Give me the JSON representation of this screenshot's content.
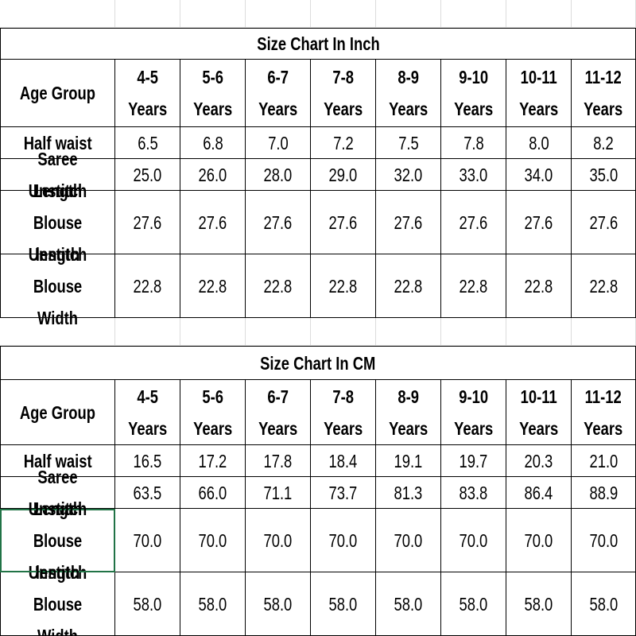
{
  "tables": [
    {
      "title": "Size Chart In Inch",
      "header": [
        "Age Group",
        "4-5\nYears",
        "5-6\nYears",
        "6-7\nYears",
        "7-8\nYears",
        "8-9\nYears",
        "9-10\nYears",
        "10-11\nYears",
        "11-12\nYears"
      ],
      "rows": [
        [
          "Half waist",
          "6.5",
          "6.8",
          "7.0",
          "7.2",
          "7.5",
          "7.8",
          "8.0",
          "8.2"
        ],
        [
          "Saree Length",
          "25.0",
          "26.0",
          "28.0",
          "29.0",
          "32.0",
          "33.0",
          "34.0",
          "35.0"
        ],
        [
          "Unstitch Blouse\nlength",
          "27.6",
          "27.6",
          "27.6",
          "27.6",
          "27.6",
          "27.6",
          "27.6",
          "27.6"
        ],
        [
          "Unstitch Blouse\nWidth",
          "22.8",
          "22.8",
          "22.8",
          "22.8",
          "22.8",
          "22.8",
          "22.8",
          "22.8"
        ]
      ]
    },
    {
      "title": "Size Chart In CM",
      "header": [
        "Age Group",
        "4-5\nYears",
        "5-6\nYears",
        "6-7\nYears",
        "7-8\nYears",
        "8-9\nYears",
        "9-10\nYears",
        "10-11\nYears",
        "11-12\nYears"
      ],
      "rows": [
        [
          "Half waist",
          "16.5",
          "17.2",
          "17.8",
          "18.4",
          "19.1",
          "19.7",
          "20.3",
          "21.0"
        ],
        [
          "Saree Length",
          "63.5",
          "66.0",
          "71.1",
          "73.7",
          "81.3",
          "83.8",
          "86.4",
          "88.9"
        ],
        [
          "Unstitch Blouse\nlength",
          "70.0",
          "70.0",
          "70.0",
          "70.0",
          "70.0",
          "70.0",
          "70.0",
          "70.0"
        ],
        [
          "Unstitch Blouse\nWidth",
          "58.0",
          "58.0",
          "58.0",
          "58.0",
          "58.0",
          "58.0",
          "58.0",
          "58.0"
        ]
      ]
    }
  ]
}
